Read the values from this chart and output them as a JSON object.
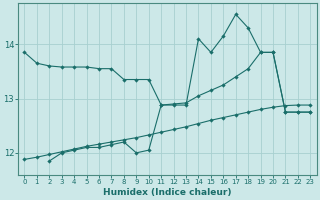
{
  "xlabel": "Humidex (Indice chaleur)",
  "bg_color": "#cce8e8",
  "grid_color": "#a8d0d0",
  "line_color": "#1a6e6a",
  "xlim": [
    -0.5,
    23.5
  ],
  "ylim": [
    11.6,
    14.75
  ],
  "yticks": [
    12,
    13,
    14
  ],
  "xticks": [
    0,
    1,
    2,
    3,
    4,
    5,
    6,
    7,
    8,
    9,
    10,
    11,
    12,
    13,
    14,
    15,
    16,
    17,
    18,
    19,
    20,
    21,
    22,
    23
  ],
  "line1_x": [
    0,
    1,
    2,
    3,
    4,
    5,
    6,
    7,
    8,
    9,
    10,
    11,
    12,
    13,
    14,
    15,
    16,
    17,
    18,
    19,
    20,
    21,
    22,
    23
  ],
  "line1_y": [
    13.85,
    13.65,
    13.6,
    13.58,
    13.58,
    13.58,
    13.55,
    13.55,
    13.35,
    13.35,
    13.35,
    12.88,
    12.88,
    12.88,
    14.1,
    13.85,
    14.15,
    14.55,
    14.3,
    13.85,
    13.85,
    12.75,
    12.75,
    12.75
  ],
  "line2_x": [
    2,
    3,
    4,
    5,
    6,
    7,
    8,
    9,
    10,
    11,
    12,
    13,
    14,
    15,
    16,
    17,
    18,
    19,
    20,
    21,
    22,
    23
  ],
  "line2_y": [
    11.85,
    12.0,
    12.05,
    12.1,
    12.1,
    12.15,
    12.2,
    12.0,
    12.05,
    12.88,
    12.9,
    12.92,
    13.05,
    13.15,
    13.25,
    13.4,
    13.55,
    13.85,
    13.85,
    12.75,
    12.75,
    12.75
  ],
  "line3_x": [
    0,
    1,
    2,
    3,
    4,
    5,
    6,
    7,
    8,
    9,
    10,
    11,
    12,
    13,
    14,
    15,
    16,
    17,
    18,
    19,
    20,
    21,
    22,
    23
  ],
  "line3_y": [
    11.88,
    11.92,
    11.97,
    12.02,
    12.07,
    12.12,
    12.16,
    12.2,
    12.24,
    12.28,
    12.33,
    12.38,
    12.43,
    12.48,
    12.54,
    12.6,
    12.65,
    12.7,
    12.75,
    12.8,
    12.84,
    12.87,
    12.88,
    12.88
  ]
}
